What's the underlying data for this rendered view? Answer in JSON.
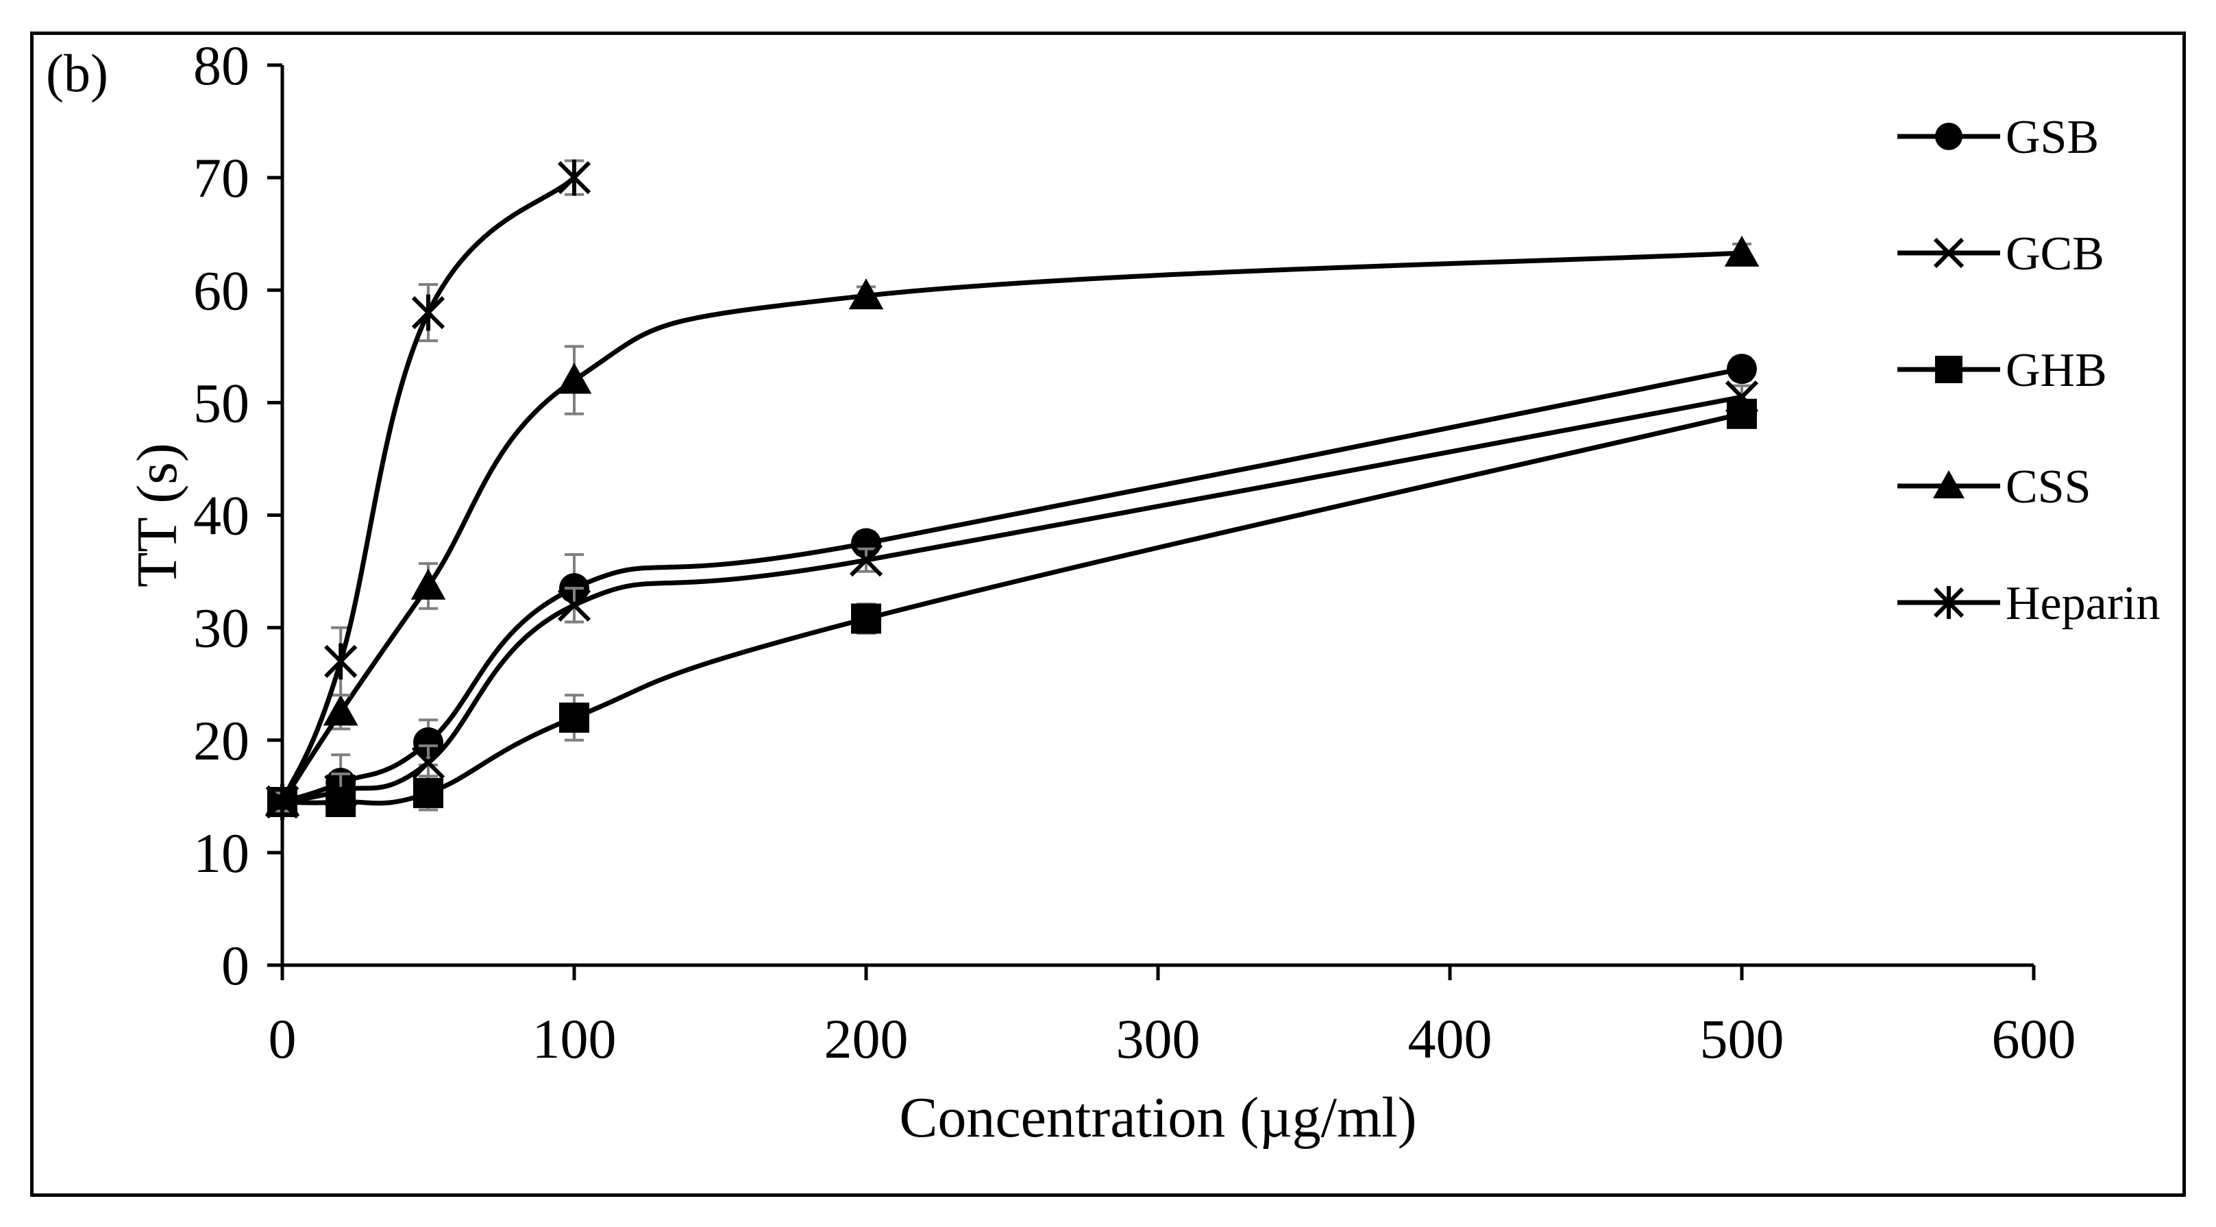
{
  "chart_data": {
    "type": "line",
    "panel_label": "(b)",
    "title": "",
    "xlabel": "Concentration (µg/ml)",
    "ylabel": "TT (s)",
    "xlim": [
      0,
      600
    ],
    "ylim": [
      0,
      80
    ],
    "x_ticks": [
      0,
      100,
      200,
      300,
      400,
      500,
      600
    ],
    "y_ticks": [
      0,
      10,
      20,
      30,
      40,
      50,
      60,
      70,
      80
    ],
    "grid": false,
    "legend_position": "right",
    "series": [
      {
        "name": "GSB",
        "marker": "circle",
        "x": [
          0,
          20,
          50,
          100,
          200,
          500
        ],
        "values": [
          14.5,
          16.2,
          19.8,
          33.5,
          37.5,
          53.0
        ],
        "errors": [
          0.8,
          2.5,
          2.0,
          3.0,
          1.0,
          1.0
        ]
      },
      {
        "name": "GCB",
        "marker": "x",
        "x": [
          0,
          20,
          50,
          100,
          200,
          500
        ],
        "values": [
          14.5,
          15.5,
          18.0,
          32.0,
          36.0,
          50.5
        ],
        "errors": [
          0.8,
          1.5,
          1.5,
          1.5,
          1.0,
          1.0
        ]
      },
      {
        "name": "GHB",
        "marker": "square",
        "x": [
          0,
          20,
          50,
          100,
          200,
          500
        ],
        "values": [
          14.5,
          14.5,
          15.3,
          22.0,
          30.8,
          49.0
        ],
        "errors": [
          0.8,
          1.0,
          1.5,
          2.0,
          1.3,
          1.2
        ]
      },
      {
        "name": "CSS",
        "marker": "triangle",
        "x": [
          0,
          20,
          50,
          100,
          200,
          500
        ],
        "values": [
          14.5,
          22.5,
          33.7,
          52.0,
          59.5,
          63.3
        ],
        "errors": [
          0.8,
          1.5,
          2.0,
          3.0,
          0.8,
          0.8
        ]
      },
      {
        "name": "Heparin",
        "marker": "asterisk",
        "x": [
          0,
          20,
          50,
          100
        ],
        "values": [
          14.5,
          27.0,
          58.0,
          70.0
        ],
        "errors": [
          0.8,
          3.0,
          2.5,
          1.5
        ]
      }
    ]
  }
}
